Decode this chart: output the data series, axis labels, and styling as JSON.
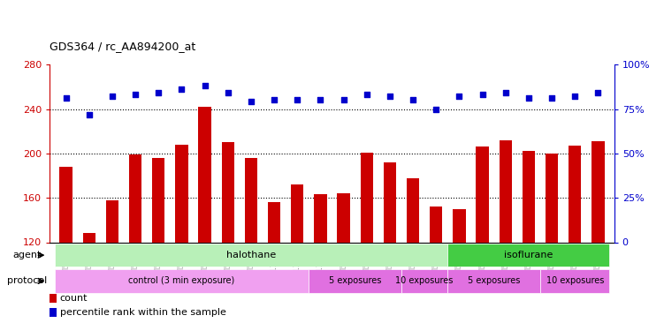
{
  "title": "GDS364 / rc_AA894200_at",
  "samples": [
    "GSM5082",
    "GSM5084",
    "GSM5085",
    "GSM5086",
    "GSM5087",
    "GSM5090",
    "GSM5105",
    "GSM5106",
    "GSM5107",
    "GSM11379",
    "GSM11380",
    "GSM11381",
    "GSM5111",
    "GSM5112",
    "GSM5113",
    "GSM5108",
    "GSM5109",
    "GSM5110",
    "GSM5117",
    "GSM5118",
    "GSM5119",
    "GSM5114",
    "GSM5115",
    "GSM5116"
  ],
  "counts": [
    188,
    128,
    158,
    199,
    196,
    208,
    242,
    210,
    196,
    156,
    172,
    163,
    164,
    201,
    192,
    178,
    152,
    150,
    206,
    212,
    202,
    200,
    207,
    211
  ],
  "percentiles": [
    81,
    72,
    82,
    83,
    84,
    86,
    88,
    84,
    79,
    80,
    80,
    80,
    80,
    83,
    82,
    80,
    75,
    82,
    83,
    84,
    81,
    81,
    82,
    84
  ],
  "ylim_left": [
    120,
    280
  ],
  "ylim_right": [
    0,
    100
  ],
  "yticks_left": [
    120,
    160,
    200,
    240,
    280
  ],
  "yticks_right": [
    0,
    25,
    50,
    75,
    100
  ],
  "bar_color": "#cc0000",
  "dot_color": "#0000cc",
  "bg_color": "#ffffff",
  "agent_regions": [
    {
      "label": "halothane",
      "start": 0,
      "end": 17,
      "color": "#b8f0b8"
    },
    {
      "label": "isoflurane",
      "start": 17,
      "end": 24,
      "color": "#44cc44"
    }
  ],
  "protocol_regions": [
    {
      "label": "control (3 min exposure)",
      "start": 0,
      "end": 11,
      "color": "#f0a0f0"
    },
    {
      "label": "5 exposures",
      "start": 11,
      "end": 15,
      "color": "#e070e0"
    },
    {
      "label": "10 exposures",
      "start": 15,
      "end": 17,
      "color": "#e070e0"
    },
    {
      "label": "5 exposures",
      "start": 17,
      "end": 21,
      "color": "#e070e0"
    },
    {
      "label": "10 exposures",
      "start": 21,
      "end": 24,
      "color": "#e070e0"
    }
  ],
  "legend_count_label": "count",
  "legend_pct_label": "percentile rank within the sample",
  "left_axis_color": "#cc0000",
  "right_axis_color": "#0000cc"
}
